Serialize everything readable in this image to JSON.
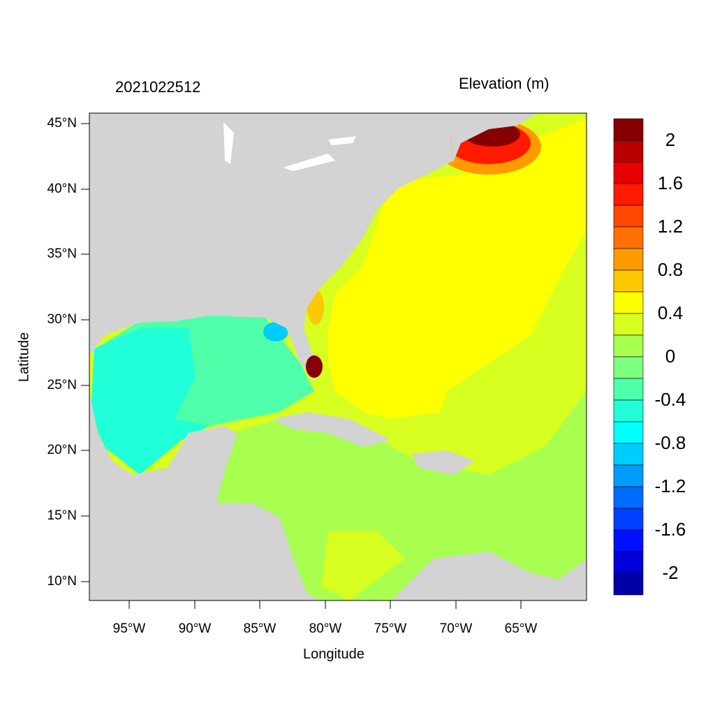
{
  "map": {
    "date_label": "2021022512",
    "variable_title": "Elevation (m)",
    "xlabel": "Longitude",
    "ylabel": "Latitude",
    "lon_ticks": [
      "95°W",
      "90°W",
      "85°W",
      "80°W",
      "75°W",
      "70°W",
      "65°W"
    ],
    "lat_ticks": [
      "45°N",
      "40°N",
      "35°N",
      "30°N",
      "25°N",
      "20°N",
      "15°N",
      "10°N"
    ],
    "land_color": "#d3d3d3"
  },
  "colorbar": {
    "labels": [
      "2",
      "1.6",
      "1.2",
      "0.8",
      "0.4",
      "0",
      "-0.4",
      "-0.8",
      "-1.2",
      "-1.6",
      "-2"
    ],
    "colors": [
      "#870000",
      "#b80000",
      "#e60000",
      "#ff1a00",
      "#ff4800",
      "#ff7000",
      "#ff9a00",
      "#ffc800",
      "#ffff00",
      "#d7ff1f",
      "#a8ff50",
      "#7fff7f",
      "#50ffaa",
      "#20ffd8",
      "#00ffff",
      "#00ccff",
      "#009cff",
      "#006cff",
      "#0040ff",
      "#0010ff",
      "#0000d8",
      "#0000a8"
    ]
  }
}
